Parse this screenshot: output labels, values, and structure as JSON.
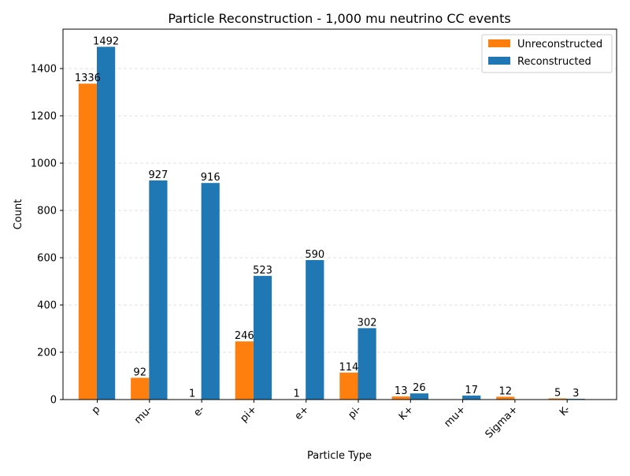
{
  "chart_data": {
    "type": "bar",
    "title": "Particle Reconstruction - 1,000 mu neutrino CC events",
    "xlabel": "Particle Type",
    "ylabel": "Count",
    "categories": [
      "p",
      "mu-",
      "e-",
      "pi+",
      "e+",
      "pi-",
      "K+",
      "mu+",
      "Sigma+",
      "K-"
    ],
    "series": [
      {
        "name": "Unreconstructed",
        "color": "#ff7f0e",
        "values": [
          1336,
          92,
          1,
          246,
          1,
          114,
          13,
          0,
          12,
          5
        ],
        "labels": [
          "1336",
          "92",
          "1",
          "246",
          "1",
          "114",
          "13",
          "",
          "12",
          "5"
        ]
      },
      {
        "name": "Reconstructed",
        "color": "#1f77b4",
        "values": [
          1492,
          927,
          916,
          523,
          590,
          302,
          26,
          17,
          0,
          3
        ],
        "labels": [
          "1492",
          "927",
          "916",
          "523",
          "590",
          "302",
          "26",
          "17",
          "",
          "3"
        ]
      }
    ],
    "ylim": [
      0,
      1566.6
    ],
    "yticks": [
      0,
      200,
      400,
      600,
      800,
      1000,
      1200,
      1400
    ],
    "ytick_labels": [
      "0",
      "200",
      "400",
      "600",
      "800",
      "1000",
      "1200",
      "1400"
    ],
    "grid": "y-dashed",
    "legend_position": "top-right"
  }
}
